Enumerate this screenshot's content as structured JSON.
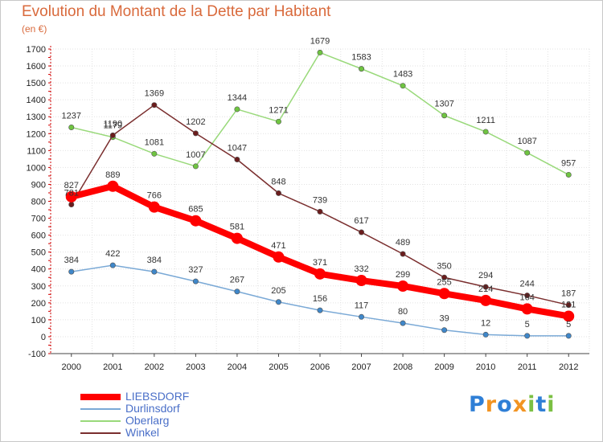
{
  "header": {
    "title": "Evolution du Montant de la Dette par Habitant",
    "subtitle": "(en €)"
  },
  "brand": {
    "text": "Proxiti",
    "letters": [
      "P",
      "r",
      "o",
      "x",
      "i",
      "t",
      "i"
    ],
    "letter_colors": [
      "#2f7fd6",
      "#f29422",
      "#2f7fd6",
      "#f29422",
      "#7bc043",
      "#2f7fd6",
      "#7bc043"
    ]
  },
  "chart_data": {
    "type": "line",
    "title": "Evolution du Montant de la Dette par Habitant",
    "subtitle": "(en €)",
    "xlabel": "",
    "ylabel": "",
    "x": [
      "2000",
      "2001",
      "2002",
      "2003",
      "2004",
      "2005",
      "2006",
      "2007",
      "2008",
      "2009",
      "2010",
      "2011",
      "2012"
    ],
    "ylim": [
      -100,
      1700
    ],
    "yticks": [
      -100,
      0,
      100,
      200,
      300,
      400,
      500,
      600,
      700,
      800,
      900,
      1000,
      1100,
      1200,
      1300,
      1400,
      1500,
      1600,
      1700
    ],
    "grid": true,
    "legend": "bottom-left",
    "series": [
      {
        "name": "LIEBSDORF",
        "color": "#ff0000",
        "marker_color": "#ff0000",
        "width": 8,
        "values": [
          827,
          889,
          766,
          685,
          581,
          471,
          371,
          332,
          299,
          255,
          214,
          164,
          121
        ]
      },
      {
        "name": "Durlinsdorf",
        "color": "#7aa9d6",
        "marker_color": "#3f87c9",
        "width": 1.5,
        "values": [
          384,
          422,
          384,
          327,
          267,
          205,
          156,
          117,
          80,
          39,
          12,
          5,
          5
        ]
      },
      {
        "name": "Oberlarg",
        "color": "#99d97a",
        "marker_color": "#6fc441",
        "width": 1.5,
        "values": [
          1237,
          1179,
          1081,
          1007,
          1344,
          1271,
          1679,
          1583,
          1483,
          1307,
          1211,
          1087,
          957
        ]
      },
      {
        "name": "Winkel",
        "color": "#7a2e2e",
        "marker_color": "#6b1d1d",
        "width": 1.5,
        "values": [
          781,
          1190,
          1369,
          1202,
          1047,
          848,
          739,
          617,
          489,
          350,
          294,
          244,
          187
        ]
      }
    ]
  }
}
